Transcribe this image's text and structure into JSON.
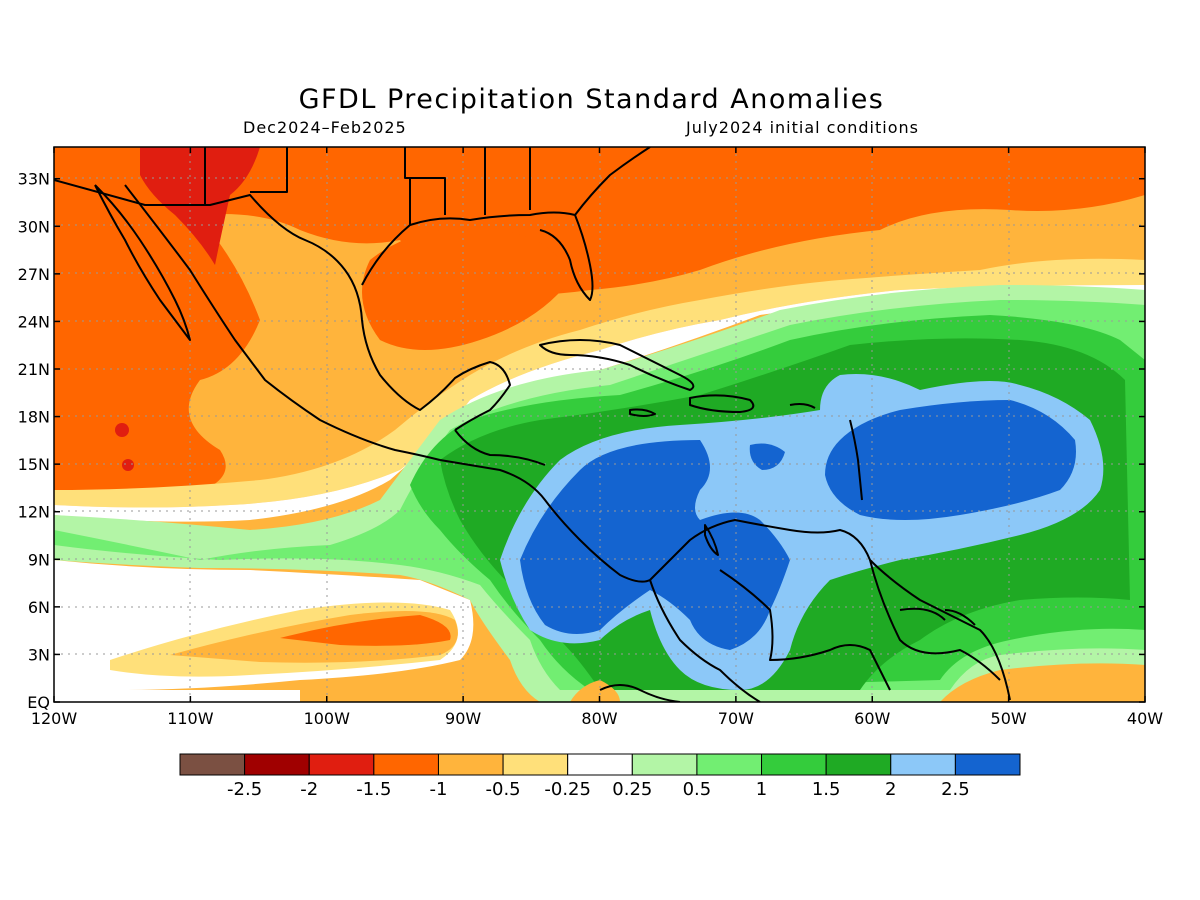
{
  "title": "GFDL Precipitation Standard Anomalies",
  "subtitle_left": "Dec2024–Feb2025",
  "subtitle_right": "July2024 initial conditions",
  "lat_labels": [
    "33N",
    "30N",
    "27N",
    "24N",
    "21N",
    "18N",
    "15N",
    "12N",
    "9N",
    "6N",
    "3N",
    "EQ"
  ],
  "lat_values": [
    33,
    30,
    27,
    24,
    21,
    18,
    15,
    12,
    9,
    6,
    3,
    0
  ],
  "lon_labels": [
    "120W",
    "110W",
    "100W",
    "90W",
    "80W",
    "70W",
    "60W",
    "50W",
    "40W"
  ],
  "lon_values": [
    -120,
    -110,
    -100,
    -90,
    -80,
    -70,
    -60,
    -50,
    -40
  ],
  "colorbar": {
    "colors": [
      "#7b5042",
      "#a00000",
      "#e01e10",
      "#ff6600",
      "#ffb43c",
      "#ffe07a",
      "#ffffff",
      "#b3f5a6",
      "#72ee72",
      "#34cc3c",
      "#1faa24",
      "#8cc8f8",
      "#1464d0"
    ],
    "labels": [
      "-2.5",
      "-2",
      "-1.5",
      "-1",
      "-0.5",
      "-0.25",
      "0.25",
      "0.5",
      "1",
      "1.5",
      "2",
      "2.5"
    ]
  }
}
